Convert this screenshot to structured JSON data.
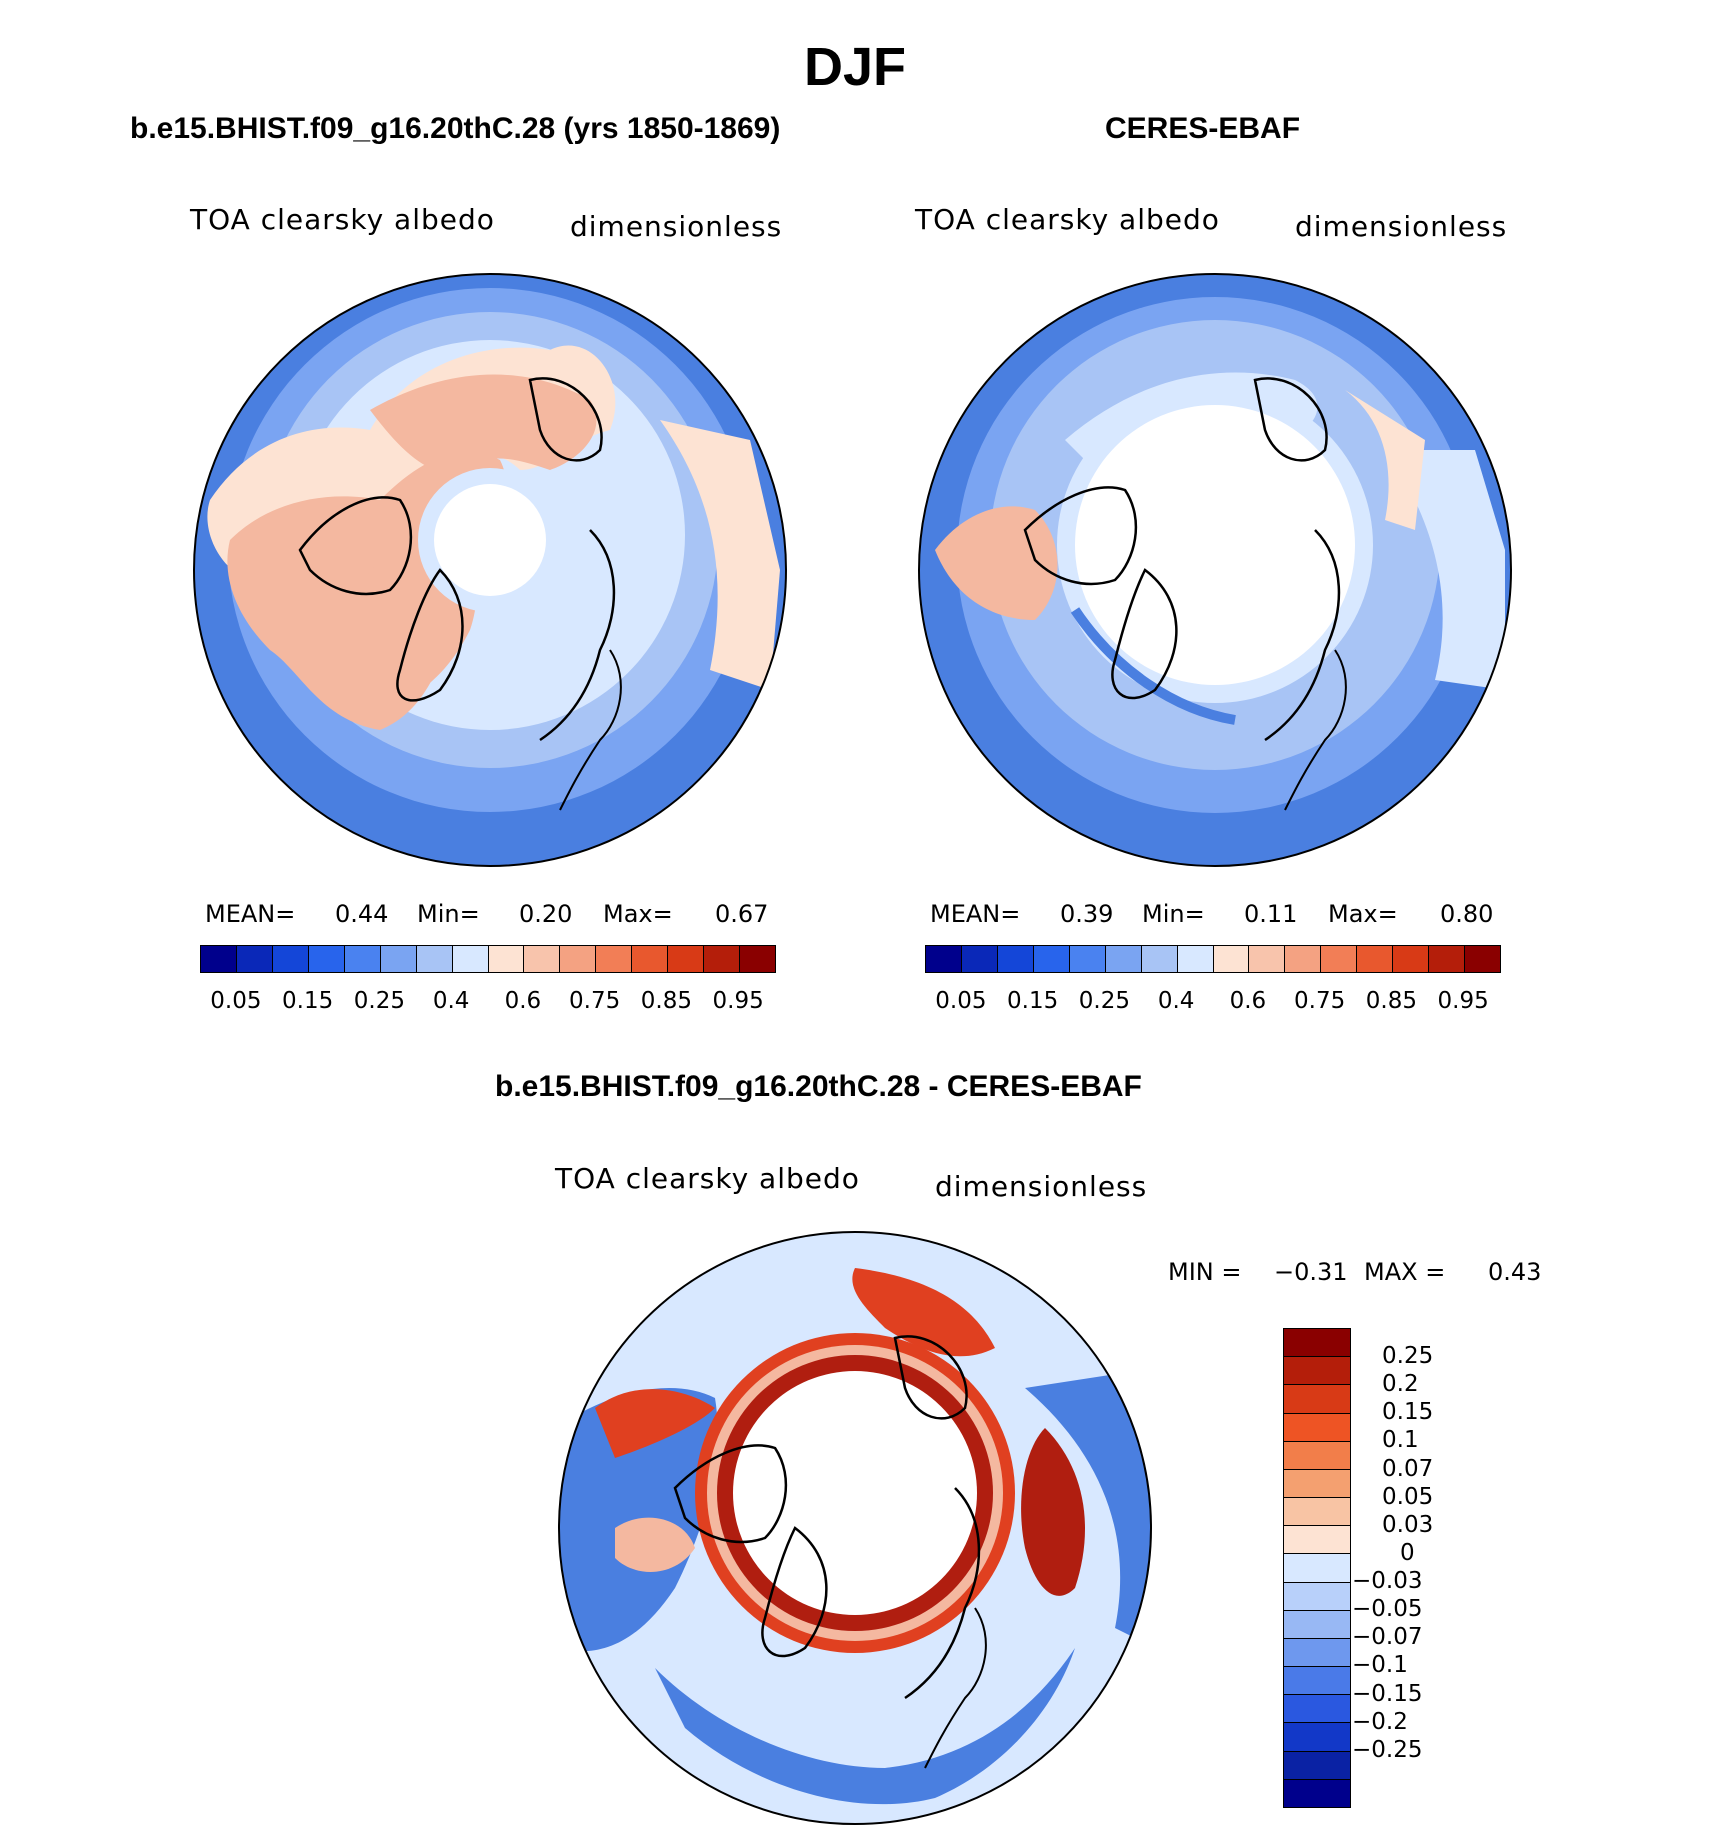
{
  "figure": {
    "title": "DJF",
    "colors": {
      "blue_water": "#4a7fe0",
      "light_blue": "#a8c4f5",
      "pale_blue": "#d8e8ff",
      "peach": "#f4b8a0",
      "pale_peach": "#fde3d3",
      "deep_red": "#b01e10",
      "red": "#e04020"
    }
  },
  "panels": {
    "model": {
      "title": "b.e15.BHIST.f09_g16.20thC.28 (yrs 1850-1869)",
      "variable": "TOA clearsky albedo",
      "units": "dimensionless",
      "stats": {
        "mean_label": "MEAN=",
        "mean": "0.44",
        "min_label": "Min=",
        "min": "0.20",
        "max_label": "Max=",
        "max": "0.67"
      }
    },
    "obs": {
      "title": "CERES-EBAF",
      "variable": "TOA clearsky albedo",
      "units": "dimensionless",
      "stats": {
        "mean_label": "MEAN=",
        "mean": "0.39",
        "min_label": "Min=",
        "min": "0.11",
        "max_label": "Max=",
        "max": "0.80"
      }
    },
    "diff": {
      "title": "b.e15.BHIST.f09_g16.20thC.28 - CERES-EBAF",
      "variable": "TOA clearsky albedo",
      "units": "dimensionless",
      "stats": {
        "min_label": "MIN =",
        "min": "−0.31",
        "max_label": "MAX =",
        "max": "0.43"
      }
    }
  },
  "colorbar_abs": {
    "colors": [
      "#00008c",
      "#0a28b8",
      "#1446d8",
      "#2864ec",
      "#4a82f0",
      "#7aa4f2",
      "#a8c4f5",
      "#d8e8ff",
      "#fde3d3",
      "#f8c4ac",
      "#f4a282",
      "#f27e56",
      "#e8582e",
      "#d83a16",
      "#b41e0a",
      "#8a0000"
    ],
    "labels": [
      "0.05",
      "0.15",
      "0.25",
      "0.4",
      "0.6",
      "0.75",
      "0.85",
      "0.95"
    ]
  },
  "colorbar_diff": {
    "colors": [
      "#8a0000",
      "#b41e0a",
      "#d83a16",
      "#ee5424",
      "#f27e4a",
      "#f4a070",
      "#f8c4a4",
      "#fde3d3",
      "#d8e8ff",
      "#b8d0fa",
      "#98b8f4",
      "#6e98ee",
      "#4a7ae8",
      "#2a58e0",
      "#1238c8",
      "#0a22a4",
      "#00008c"
    ],
    "labels": [
      "0.25",
      "0.2",
      "0.15",
      "0.1",
      "0.07",
      "0.05",
      "0.03",
      "0",
      "−0.03",
      "−0.05",
      "−0.07",
      "−0.1",
      "−0.15",
      "−0.2",
      "−0.25"
    ]
  }
}
